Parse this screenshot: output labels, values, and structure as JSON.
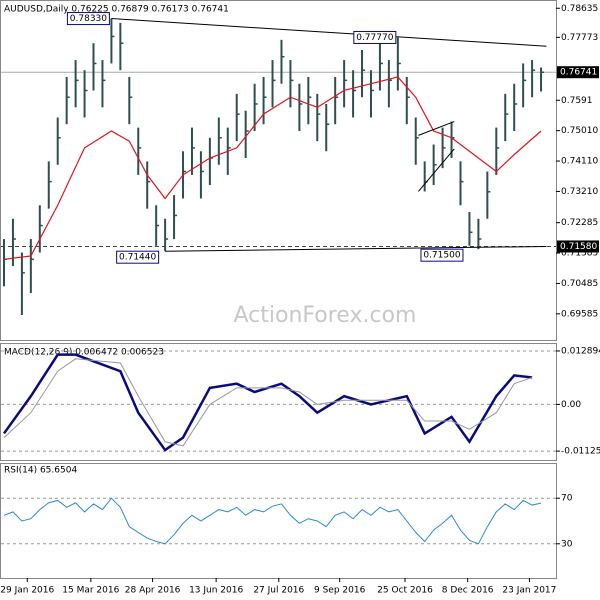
{
  "chart_data": [
    {
      "type": "ohlc",
      "title": "AUDUSD,Daily  0.76225 0.76879 0.76173 0.76741",
      "watermark": "ActionForex.com",
      "color": "#2f4f4f",
      "xlim": [
        0,
        61
      ],
      "ylim": [
        0.6881,
        0.7885
      ],
      "yticks": [
        0.78635,
        0.77773,
        0.7591,
        {
          "value": 0.7501,
          "label": "0.75010"
        },
        {
          "value": 0.7411,
          "label": "0.74110"
        },
        {
          "value": 0.7321,
          "label": "0.73210"
        },
        0.72285,
        0.71385,
        0.70485,
        0.69585
      ],
      "high": [
        0.718,
        0.724,
        0.714,
        0.718,
        0.728,
        0.741,
        0.754,
        0.766,
        0.771,
        0.768,
        0.776,
        0.771,
        0.7833,
        0.782,
        0.766,
        0.751,
        0.741,
        0.728,
        0.724,
        0.731,
        0.744,
        0.751,
        0.744,
        0.748,
        0.754,
        0.751,
        0.761,
        0.756,
        0.764,
        0.766,
        0.771,
        0.777,
        0.771,
        0.764,
        0.766,
        0.761,
        0.758,
        0.766,
        0.771,
        0.768,
        0.774,
        0.768,
        0.776,
        0.771,
        0.7777,
        0.766,
        0.754,
        0.741,
        0.746,
        0.751,
        0.7528,
        0.741,
        0.726,
        0.724,
        0.738,
        0.751,
        0.761,
        0.764,
        0.77,
        0.771,
        0.7688
      ],
      "low": [
        0.704,
        0.71,
        0.6955,
        0.702,
        0.714,
        0.727,
        0.74,
        0.752,
        0.757,
        0.754,
        0.762,
        0.757,
        0.77,
        0.768,
        0.752,
        0.737,
        0.727,
        0.716,
        0.7144,
        0.718,
        0.73,
        0.737,
        0.73,
        0.734,
        0.74,
        0.737,
        0.747,
        0.742,
        0.75,
        0.752,
        0.757,
        0.764,
        0.757,
        0.75,
        0.752,
        0.747,
        0.744,
        0.752,
        0.757,
        0.754,
        0.76,
        0.754,
        0.762,
        0.757,
        0.762,
        0.752,
        0.74,
        0.7321,
        0.734,
        0.739,
        0.742,
        0.728,
        0.716,
        0.715,
        0.724,
        0.737,
        0.747,
        0.75,
        0.757,
        0.76,
        0.7617
      ],
      "close": [
        0.712,
        0.718,
        0.708,
        0.712,
        0.722,
        0.735,
        0.748,
        0.76,
        0.765,
        0.762,
        0.77,
        0.765,
        0.778,
        0.776,
        0.76,
        0.745,
        0.735,
        0.722,
        0.718,
        0.725,
        0.738,
        0.745,
        0.738,
        0.742,
        0.748,
        0.745,
        0.755,
        0.75,
        0.758,
        0.76,
        0.765,
        0.772,
        0.765,
        0.758,
        0.76,
        0.755,
        0.752,
        0.76,
        0.765,
        0.762,
        0.768,
        0.762,
        0.77,
        0.765,
        0.77,
        0.76,
        0.748,
        0.735,
        0.74,
        0.745,
        0.748,
        0.735,
        0.72,
        0.718,
        0.732,
        0.745,
        0.755,
        0.758,
        0.765,
        0.768,
        0.7674
      ],
      "ma": {
        "color": "#e0141e",
        "x": [
          0,
          3,
          6,
          9,
          12,
          14,
          16,
          18,
          20,
          23,
          26,
          29,
          32,
          35,
          38,
          41,
          44,
          46,
          48,
          50,
          53,
          55,
          57,
          60
        ],
        "values": [
          0.712,
          0.713,
          0.728,
          0.745,
          0.75,
          0.747,
          0.737,
          0.73,
          0.737,
          0.742,
          0.745,
          0.755,
          0.76,
          0.757,
          0.762,
          0.764,
          0.766,
          0.76,
          0.75,
          0.748,
          0.742,
          0.738,
          0.743,
          0.75
        ]
      },
      "lines": [
        {
          "x": [
            12,
            60.6
          ],
          "values": [
            0.7833,
            0.7751
          ]
        },
        {
          "x": [
            18,
            60.6
          ],
          "values": [
            0.7144,
            0.7158
          ]
        },
        {
          "x": [
            46.3,
            50.3
          ],
          "values": [
            0.7487,
            0.7528
          ]
        },
        {
          "x": [
            46.3,
            50.3
          ],
          "values": [
            0.7321,
            0.7447
          ]
        }
      ],
      "price_labels": [
        0.76741,
        {
          "value": 0.7158,
          "label": "0.71580"
        }
      ],
      "annotations": [
        {
          "x": 12,
          "value": 0.7833,
          "label": "0.78330"
        },
        {
          "x": 44,
          "value": 0.7777,
          "label": "0.77770"
        },
        {
          "x": 17.5,
          "value": 0.7144,
          "label": "0.71440"
        },
        {
          "x": 51.5,
          "value": 0.715,
          "label": "0.71500"
        }
      ]
    },
    {
      "type": "line",
      "title": "MACD(12,26,9) 0.006472 0.006523",
      "grid": true,
      "xlim": [
        0,
        61
      ],
      "ylim": [
        -0.0134,
        0.01457
      ],
      "yticks": [
        0.012894,
        {
          "value": 0,
          "label": "0.00"
        },
        -0.011253
      ],
      "series": [
        {
          "color": "#0a0a80",
          "width": 2.5,
          "x": [
            0,
            3,
            6,
            8,
            13,
            15,
            18,
            20,
            23,
            26,
            28,
            31,
            33,
            35,
            38,
            41,
            45,
            47,
            50,
            52,
            55,
            57,
            59
          ],
          "values": [
            -0.007,
            0.002,
            0.012,
            0.012,
            0.008,
            -0.002,
            -0.011,
            -0.008,
            0.004,
            0.005,
            0.003,
            0.005,
            0.002,
            -0.002,
            0.002,
            0,
            0.002,
            -0.007,
            -0.003,
            -0.009,
            0.002,
            0.007,
            0.0065
          ]
        },
        {
          "color": "#999999",
          "width": 1,
          "x": [
            0,
            3,
            6,
            8,
            13,
            15,
            18,
            20,
            23,
            26,
            28,
            31,
            33,
            35,
            38,
            41,
            45,
            47,
            50,
            52,
            55,
            57,
            59
          ],
          "values": [
            -0.008,
            -0.002,
            0.008,
            0.011,
            0.01,
            0.002,
            -0.009,
            -0.01,
            0,
            0.004,
            0.004,
            0.004,
            0.003,
            0,
            0.001,
            0.001,
            0.001,
            -0.004,
            -0.004,
            -0.006,
            -0.002,
            0.005,
            0.0065
          ]
        }
      ]
    },
    {
      "type": "line",
      "title": "RSI(14) 65.6504",
      "grid": true,
      "xlim": [
        0,
        61
      ],
      "ylim": [
        0,
        100
      ],
      "yticks": [
        70,
        30
      ],
      "xticks": [
        {
          "value": 2.6,
          "label": "29 Jan 2016"
        },
        {
          "value": 9.7,
          "label": "15 Mar 2016"
        },
        {
          "value": 16.6,
          "label": "28 Apr 2016"
        },
        {
          "value": 23.7,
          "label": "13 Jun 2016"
        },
        {
          "value": 30.7,
          "label": "27 Jul 2016"
        },
        {
          "value": 37.5,
          "label": "9 Sep 2016"
        },
        {
          "value": 44.8,
          "label": "25 Oct 2016"
        },
        {
          "value": 51.8,
          "label": "8 Dec 2016"
        },
        {
          "value": 58.7,
          "label": "23 Jan 2017"
        }
      ],
      "series": [
        {
          "color": "#2a8ad8",
          "width": 1,
          "values": [
            55,
            58,
            50,
            52,
            60,
            66,
            68,
            62,
            66,
            58,
            65,
            60,
            70,
            62,
            45,
            40,
            35,
            32,
            30,
            38,
            48,
            55,
            50,
            55,
            60,
            58,
            62,
            55,
            60,
            58,
            63,
            65,
            55,
            48,
            52,
            50,
            45,
            55,
            58,
            52,
            60,
            55,
            62,
            58,
            60,
            50,
            40,
            32,
            42,
            48,
            55,
            42,
            33,
            30,
            45,
            58,
            65,
            60,
            68,
            64,
            65.6504
          ]
        }
      ]
    }
  ]
}
